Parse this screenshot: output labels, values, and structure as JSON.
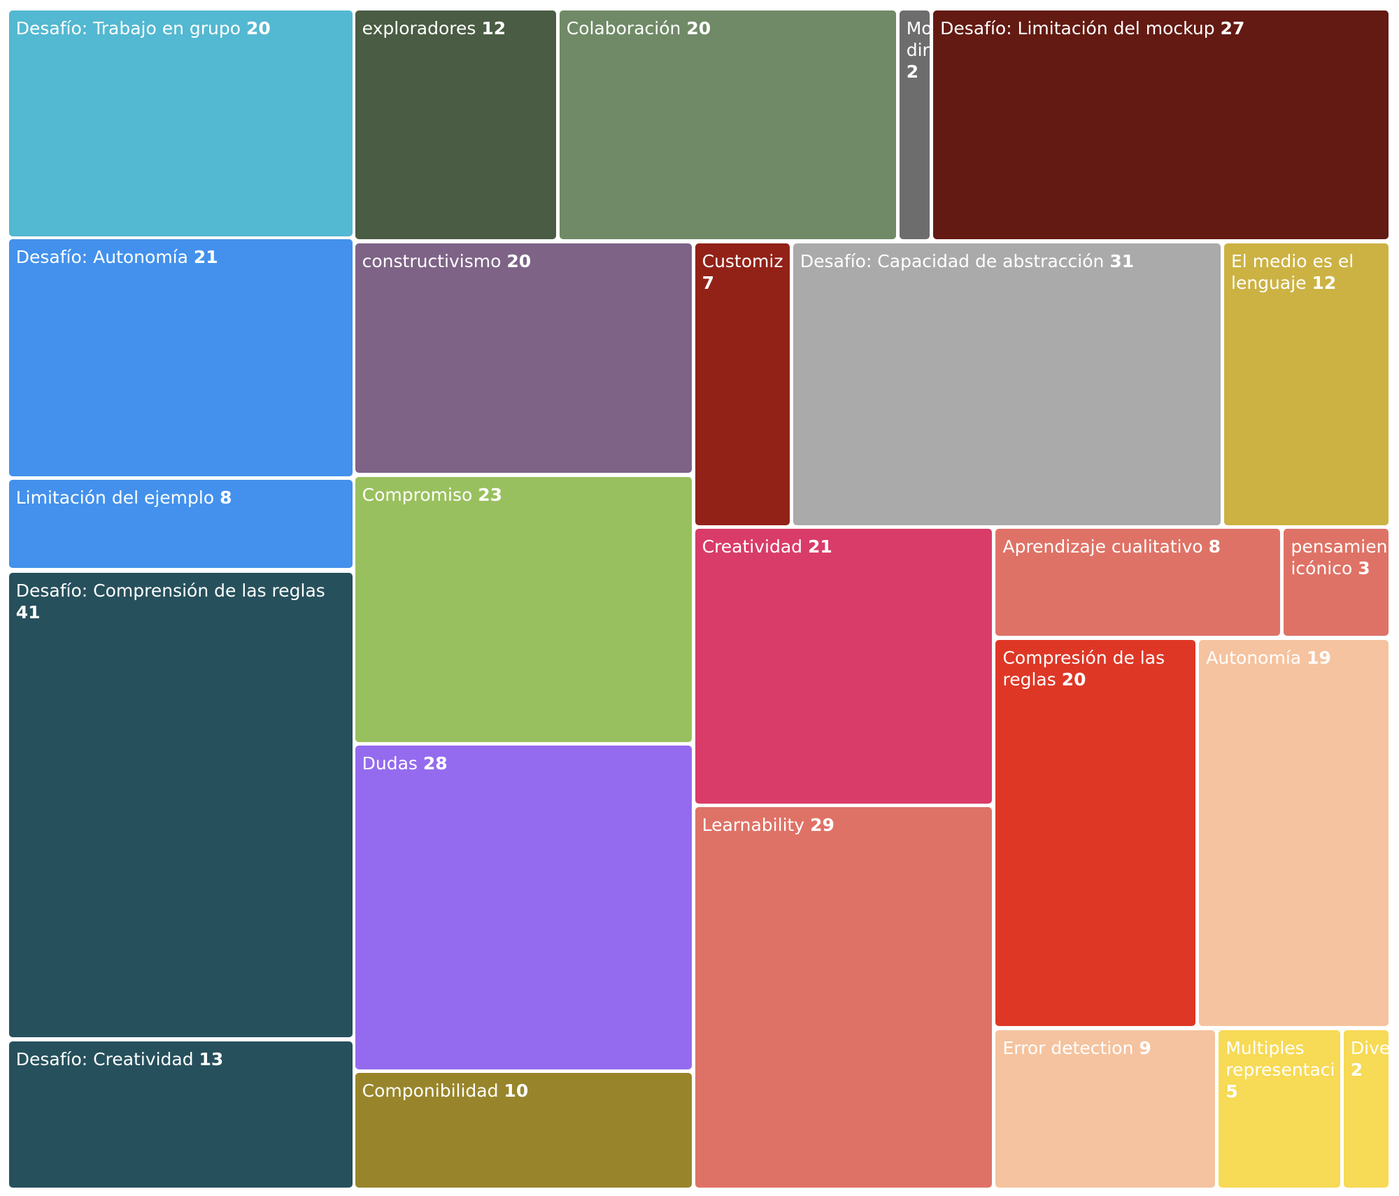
{
  "chart_data": {
    "type": "treemap",
    "categories": [
      "Desafío: Trabajo en grupo",
      "Desafío: Autonomía",
      "Limitación del ejemplo",
      "Desafío: Comprensión de las reglas",
      "Desafío: Creatividad",
      "exploradores",
      "Colaboración",
      "Mo dir",
      "Desafío: Limitación del mockup",
      "constructivismo",
      "Compromiso",
      "Dudas",
      "Componibilidad",
      "Customiz",
      "Desafío: Capacidad de abstracción",
      "El medio es el lenguaje",
      "Creatividad",
      "Learnability",
      "Aprendizaje cualitativo",
      "pensamien icónico",
      "Compresión de las reglas",
      "Autonomía",
      "Error detection",
      "Multiples representaci",
      "Dive"
    ],
    "values": [
      20,
      21,
      8,
      41,
      13,
      12,
      20,
      2,
      27,
      20,
      23,
      28,
      10,
      7,
      31,
      12,
      21,
      29,
      8,
      3,
      20,
      19,
      9,
      5,
      2
    ],
    "colors": [
      "#53b8d1",
      "#4391ec",
      "#4391ec",
      "#26505c",
      "#26505c",
      "#4a5c43",
      "#708a67",
      "#6d6d6d",
      "#631a12",
      "#7e6387",
      "#99c05e",
      "#946bee",
      "#98852b",
      "#922218",
      "#aaaaaa",
      "#ccb243",
      "#d93c69",
      "#df7266",
      "#df7266",
      "#df7266",
      "#de3726",
      "#f5c39f",
      "#f5c39f",
      "#f7da55",
      "#f7da55"
    ]
  }
}
